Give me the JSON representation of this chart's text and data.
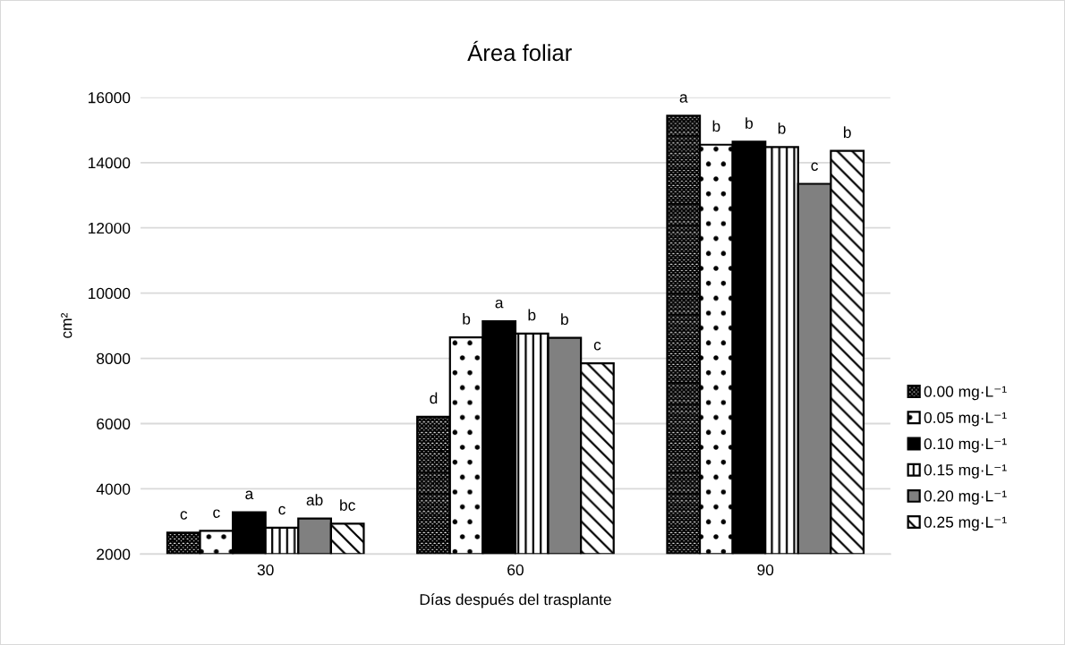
{
  "chart_data": {
    "type": "bar",
    "title": "Área foliar",
    "xlabel": "Días después del trasplante",
    "ylabel": "cm²",
    "categories": [
      "30",
      "60",
      "90"
    ],
    "series": [
      {
        "name": "0.00 mg·L⁻¹",
        "color": "#000000",
        "values": [
          2660,
          6210,
          15440
        ],
        "value_labels": [
          "c",
          "d",
          "a"
        ]
      },
      {
        "name": "0.05 mg·L⁻¹",
        "color": "#000000",
        "values": [
          2710,
          8640,
          14550
        ],
        "value_labels": [
          "c",
          "b",
          "b"
        ]
      },
      {
        "name": "0.10 mg·L⁻¹",
        "color": "#000000",
        "values": [
          3280,
          9140,
          14640
        ],
        "value_labels": [
          "a",
          "a",
          "b"
        ]
      },
      {
        "name": "0.15 mg·L⁻¹",
        "color": "#000000",
        "values": [
          2810,
          8760,
          14480
        ],
        "value_labels": [
          "c",
          "b",
          "b"
        ]
      },
      {
        "name": "0.20 mg·L⁻¹",
        "color": "#808080",
        "values": [
          3090,
          8630,
          13350
        ],
        "value_labels": [
          "ab",
          "b",
          "c"
        ]
      },
      {
        "name": "0.25 mg·L⁻¹",
        "color": "#000000",
        "values": [
          2930,
          7850,
          14360
        ],
        "value_labels": [
          "bc",
          "c",
          "b"
        ]
      }
    ],
    "ylim": [
      2000,
      16000
    ],
    "yticks": [
      2000,
      4000,
      6000,
      8000,
      10000,
      12000,
      14000,
      16000
    ],
    "grid": "y",
    "legend": "right"
  }
}
